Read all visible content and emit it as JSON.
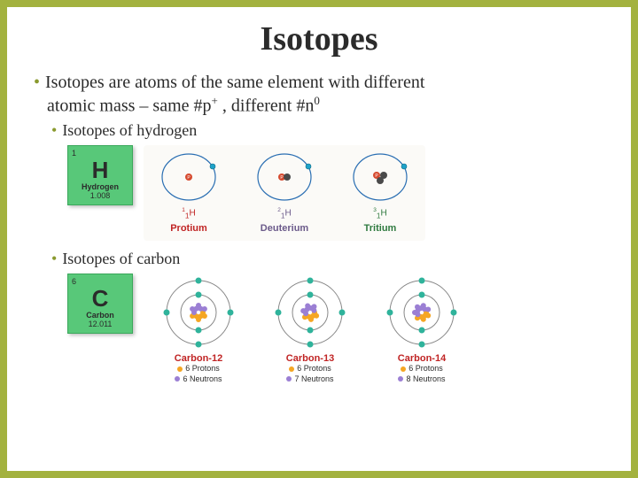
{
  "title": "Isotopes",
  "bullet_main_line1": "Isotopes are atoms of the same element with different",
  "bullet_main_line2_pre": "atomic mass – same #p",
  "bullet_main_line2_mid": " , different #n",
  "sub1": "Isotopes of hydrogen",
  "sub2": "Isotopes of carbon",
  "colors": {
    "frame": "#a3b23f",
    "tile_bg": "#58c879",
    "electron": "#1ea2c9",
    "electron_stroke": "#0f6d88",
    "proton": "#d64a2f",
    "neutron": "#4a4a4a",
    "orbit": "#2b6fb3",
    "c_proton": "#f5a623",
    "c_neutron": "#9b7fd4",
    "c_electron": "#2fb39b",
    "c_orbit": "#888888"
  },
  "hydrogen_tile": {
    "num": "1",
    "sym": "H",
    "ename": "Hydrogen",
    "mass": "1.008"
  },
  "carbon_tile": {
    "num": "6",
    "sym": "C",
    "ename": "Carbon",
    "mass": "12.011"
  },
  "h_isotopes": [
    {
      "iso_pre": "1",
      "iso_post": "H",
      "name": "Protium",
      "name_color": "#c02424",
      "protons": 1,
      "neutrons": 0
    },
    {
      "iso_pre": "2",
      "iso_post": "H",
      "name": "Deuterium",
      "name_color": "#6b5a8a",
      "protons": 1,
      "neutrons": 1
    },
    {
      "iso_pre": "3",
      "iso_post": "H",
      "name": "Tritium",
      "name_color": "#2f7a3f",
      "protons": 1,
      "neutrons": 2
    }
  ],
  "c_isotopes": [
    {
      "name": "Carbon-12",
      "name_color": "#c02424",
      "protons": 6,
      "neutrons": 6,
      "p_label": "6 Protons",
      "n_label": "6 Neutrons"
    },
    {
      "name": "Carbon-13",
      "name_color": "#c02424",
      "protons": 6,
      "neutrons": 7,
      "p_label": "6 Protons",
      "n_label": "7 Neutrons"
    },
    {
      "name": "Carbon-14",
      "name_color": "#c02424",
      "protons": 6,
      "neutrons": 8,
      "p_label": "6 Protons",
      "n_label": "8 Neutrons"
    }
  ]
}
